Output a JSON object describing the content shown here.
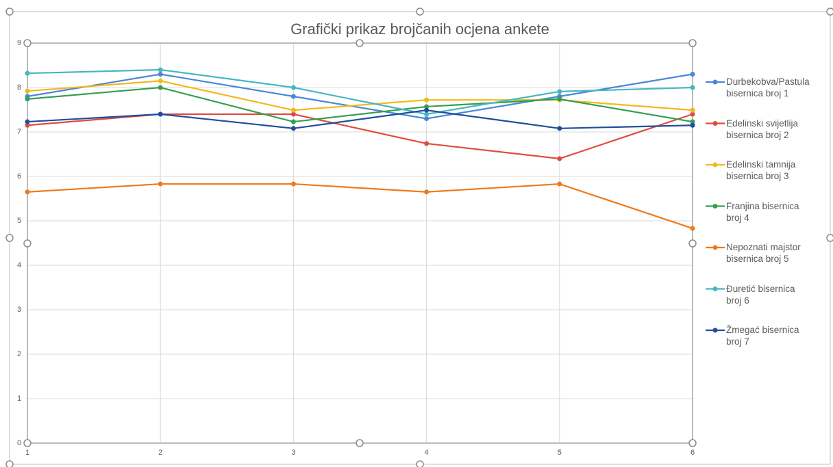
{
  "chart_data": {
    "type": "line",
    "title": "Grafički prikaz brojčanih ocjena ankete",
    "x": [
      1,
      2,
      3,
      4,
      5,
      6
    ],
    "xlim": [
      1,
      6
    ],
    "xticks": [
      1,
      2,
      3,
      4,
      5,
      6
    ],
    "ylim": [
      0,
      9
    ],
    "yticks": [
      0,
      1,
      2,
      3,
      4,
      5,
      6,
      7,
      8,
      9
    ],
    "grid": true,
    "legend": "right",
    "series": [
      {
        "name": "Durbekobva/Pastula bisernica broj 1",
        "color": "#4a86d8",
        "values": [
          7.8,
          8.3,
          7.8,
          7.3,
          7.8,
          8.3
        ]
      },
      {
        "name": "Edelinski svijetlija bisernica broj 2",
        "color": "#e04b3f",
        "values": [
          7.15,
          7.4,
          7.4,
          6.74,
          6.4,
          7.4
        ]
      },
      {
        "name": "Edelinski tamnija bisernica broj 3",
        "color": "#f4b81c",
        "values": [
          7.92,
          8.15,
          7.49,
          7.72,
          7.72,
          7.49
        ]
      },
      {
        "name": "Franjina bisernica broj 4",
        "color": "#34a04f",
        "values": [
          7.74,
          8.0,
          7.23,
          7.57,
          7.74,
          7.23
        ]
      },
      {
        "name": "Nepoznati majstor bisernica broj 5",
        "color": "#ee7a1c",
        "values": [
          5.65,
          5.83,
          5.83,
          5.65,
          5.83,
          4.83
        ]
      },
      {
        "name": "Đuretić bisernica broj 6",
        "color": "#46b6c4",
        "values": [
          8.32,
          8.4,
          8.0,
          7.4,
          7.91,
          8.0
        ]
      },
      {
        "name": "Žmegać bisernica broj 7",
        "color": "#1f4e9c",
        "values": [
          7.23,
          7.4,
          7.08,
          7.49,
          7.08,
          7.15
        ]
      }
    ]
  }
}
